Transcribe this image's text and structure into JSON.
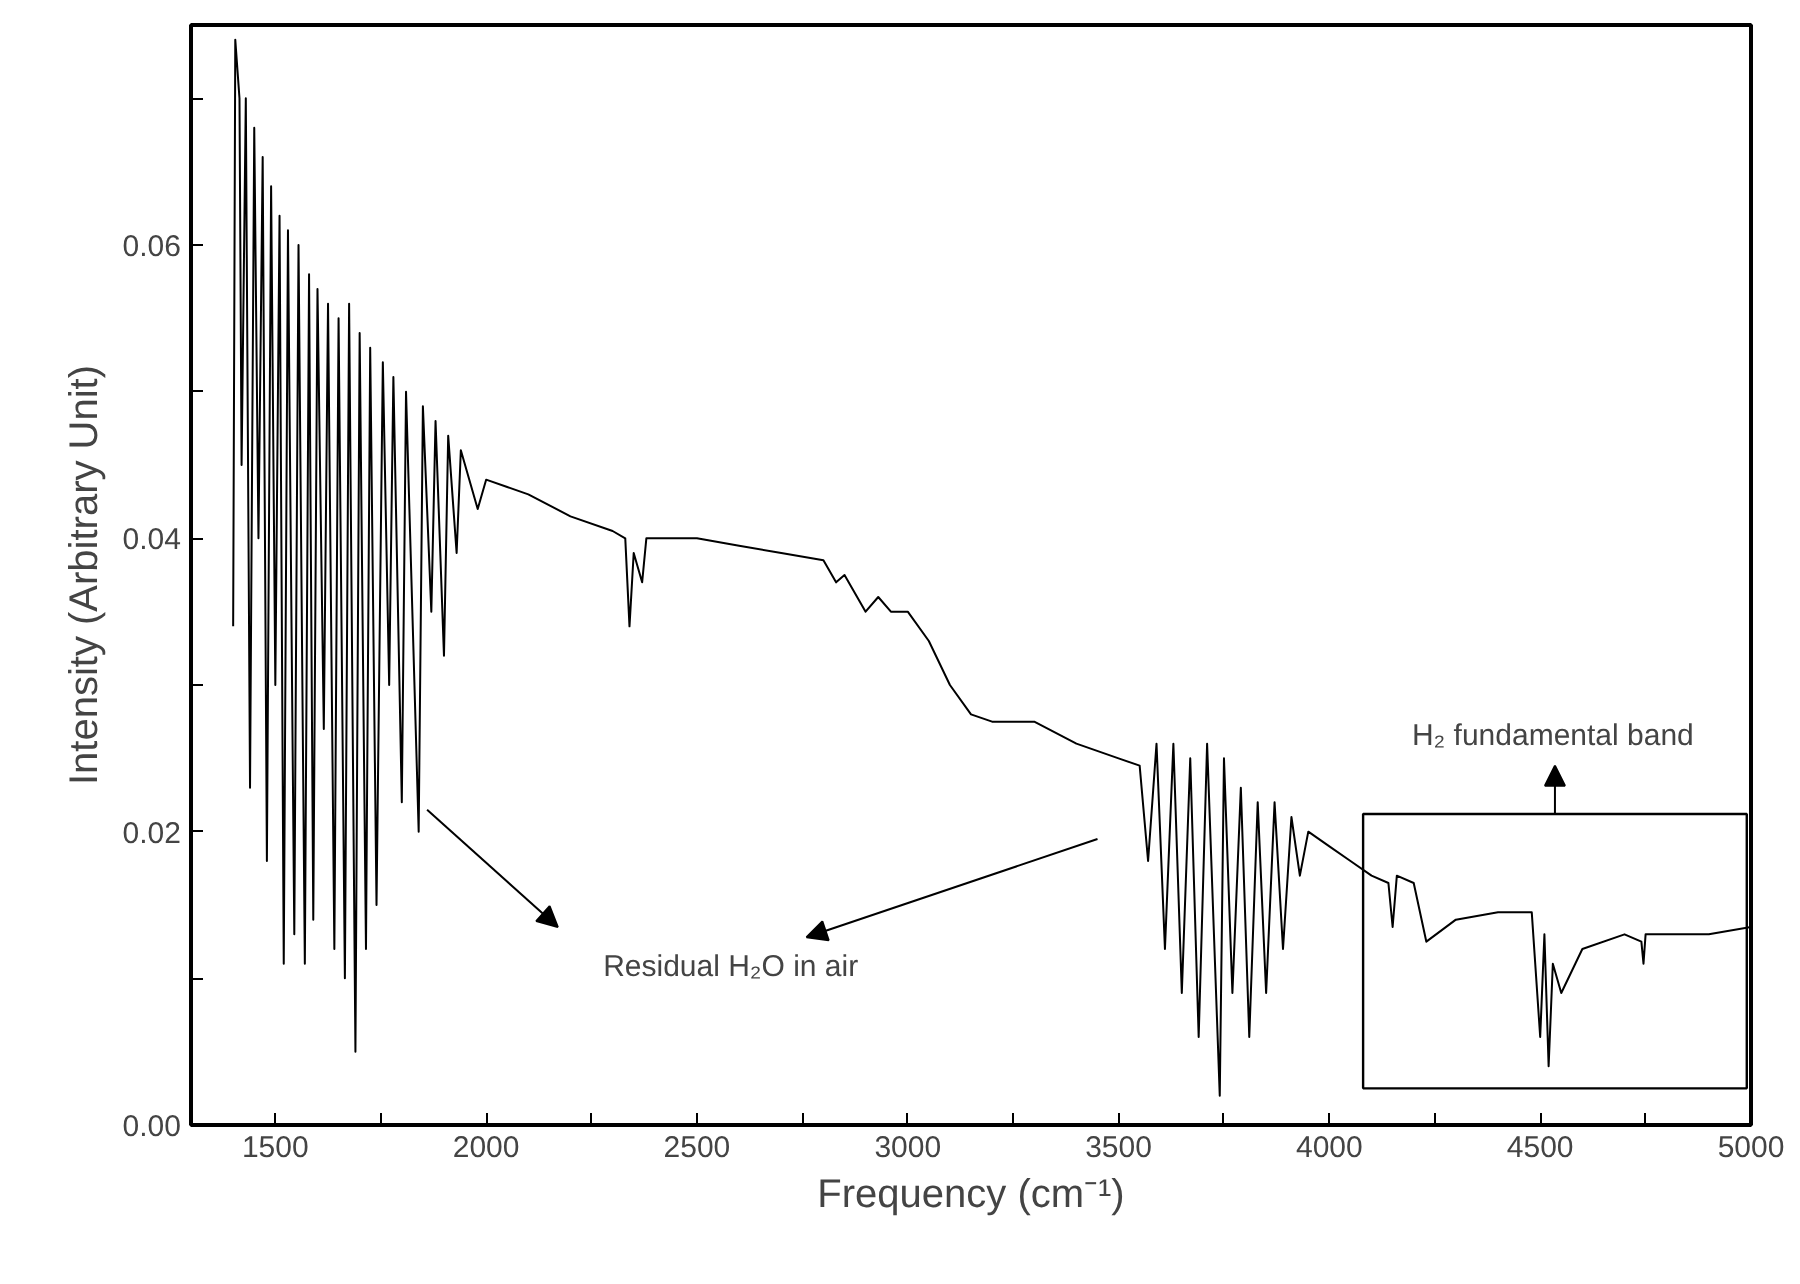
{
  "chart_data": {
    "type": "line",
    "xlabel": "Frequency (cm⁻¹)",
    "ylabel": "Intensity (Arbitrary Unit)",
    "x": [
      1400,
      1405,
      1415,
      1420,
      1430,
      1440,
      1450,
      1460,
      1470,
      1480,
      1490,
      1500,
      1510,
      1520,
      1530,
      1545,
      1555,
      1570,
      1580,
      1590,
      1600,
      1615,
      1625,
      1640,
      1650,
      1665,
      1675,
      1690,
      1700,
      1715,
      1725,
      1740,
      1755,
      1770,
      1780,
      1800,
      1810,
      1840,
      1850,
      1870,
      1880,
      1900,
      1910,
      1930,
      1940,
      1980,
      2000,
      2050,
      2100,
      2200,
      2300,
      2330,
      2340,
      2350,
      2370,
      2380,
      2500,
      2600,
      2700,
      2800,
      2830,
      2850,
      2900,
      2930,
      2960,
      3000,
      3050,
      3100,
      3150,
      3200,
      3300,
      3400,
      3500,
      3550,
      3570,
      3590,
      3610,
      3630,
      3650,
      3670,
      3690,
      3710,
      3740,
      3750,
      3770,
      3790,
      3810,
      3830,
      3850,
      3870,
      3890,
      3910,
      3930,
      3950,
      4000,
      4050,
      4100,
      4140,
      4150,
      4160,
      4200,
      4230,
      4300,
      4400,
      4480,
      4500,
      4510,
      4520,
      4530,
      4550,
      4600,
      4700,
      4740,
      4745,
      4750,
      4850,
      4900,
      5000
    ],
    "series": [
      {
        "color": "#000000",
        "values": [
          0.034,
          0.074,
          0.07,
          0.045,
          0.07,
          0.023,
          0.068,
          0.04,
          0.066,
          0.018,
          0.064,
          0.03,
          0.062,
          0.011,
          0.061,
          0.013,
          0.06,
          0.011,
          0.058,
          0.014,
          0.057,
          0.027,
          0.056,
          0.012,
          0.055,
          0.01,
          0.056,
          0.005,
          0.054,
          0.012,
          0.053,
          0.015,
          0.052,
          0.03,
          0.051,
          0.022,
          0.05,
          0.02,
          0.049,
          0.035,
          0.048,
          0.032,
          0.047,
          0.039,
          0.046,
          0.042,
          0.044,
          0.0435,
          0.043,
          0.0415,
          0.0405,
          0.04,
          0.034,
          0.039,
          0.037,
          0.04,
          0.04,
          0.0395,
          0.039,
          0.0385,
          0.037,
          0.0375,
          0.035,
          0.036,
          0.035,
          0.035,
          0.033,
          0.03,
          0.028,
          0.0275,
          0.0275,
          0.026,
          0.025,
          0.0245,
          0.018,
          0.026,
          0.012,
          0.026,
          0.009,
          0.025,
          0.006,
          0.026,
          0.002,
          0.025,
          0.009,
          0.023,
          0.006,
          0.022,
          0.009,
          0.022,
          0.012,
          0.021,
          0.017,
          0.02,
          0.019,
          0.018,
          0.017,
          0.0165,
          0.0135,
          0.017,
          0.0165,
          0.0125,
          0.014,
          0.0145,
          0.0145,
          0.006,
          0.013,
          0.004,
          0.011,
          0.009,
          0.012,
          0.013,
          0.0125,
          0.011,
          0.013,
          0.013,
          0.013,
          0.0135
        ]
      }
    ],
    "xlim": [
      1300,
      5000
    ],
    "ylim": [
      0,
      0.075
    ],
    "xticks": [
      1500,
      {
        "value": 1750,
        "label": null
      },
      2000,
      {
        "value": 2250,
        "label": null
      },
      2500,
      {
        "value": 2750,
        "label": null
      },
      3000,
      {
        "value": 3250,
        "label": null
      },
      3500,
      {
        "value": 3750,
        "label": null
      },
      4000,
      {
        "value": 4250,
        "label": null
      },
      4500,
      {
        "value": 4750,
        "label": null
      },
      5000
    ],
    "yticks": [
      {
        "value": 0,
        "label": "0.00"
      },
      {
        "value": 0.01,
        "label": null
      },
      0.02,
      {
        "value": 0.03,
        "label": null
      },
      0.04,
      {
        "value": 0.05,
        "label": null
      },
      0.06,
      {
        "value": 0.07,
        "label": null
      }
    ],
    "annotations": [
      "Residual H₂O in air",
      "H₂ fundamental band"
    ],
    "grid": false,
    "marker": "none",
    "line_style": "solid"
  }
}
